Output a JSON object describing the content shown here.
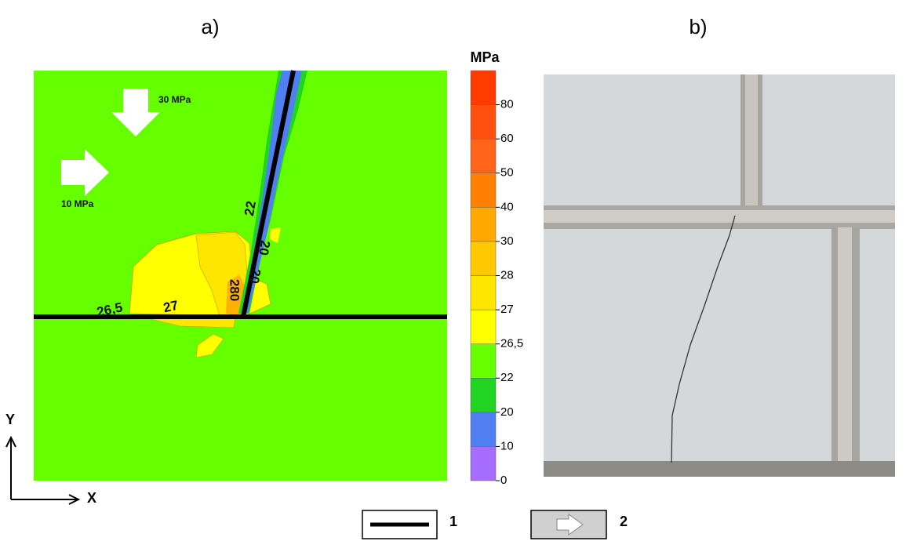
{
  "panels": {
    "a": "a)",
    "b": "b)"
  },
  "colorbar": {
    "unit": "MPa",
    "bands": [
      {
        "label": "0",
        "color": "#a66cff"
      },
      {
        "label": "10",
        "color": "#4f7ff0"
      },
      {
        "label": "20",
        "color": "#22d422"
      },
      {
        "label": "22",
        "color": "#66ff00"
      },
      {
        "label": "26,5",
        "color": "#ffff00"
      },
      {
        "label": "27",
        "color": "#ffe600"
      },
      {
        "label": "28",
        "color": "#ffc800"
      },
      {
        "label": "30",
        "color": "#ffa800"
      },
      {
        "label": "40",
        "color": "#ff8000"
      },
      {
        "label": "50",
        "color": "#ff6418"
      },
      {
        "label": "60",
        "color": "#ff5010"
      },
      {
        "label": "80",
        "color": "#ff3c00"
      }
    ]
  },
  "contour_labels": [
    "26,5",
    "27",
    "22",
    "20",
    "20",
    "280"
  ],
  "loads": {
    "vertical": "30 MPa",
    "horizontal": "10 MPa"
  },
  "axes": {
    "y": "Y",
    "x": "X"
  },
  "legend": [
    "1",
    "2"
  ]
}
